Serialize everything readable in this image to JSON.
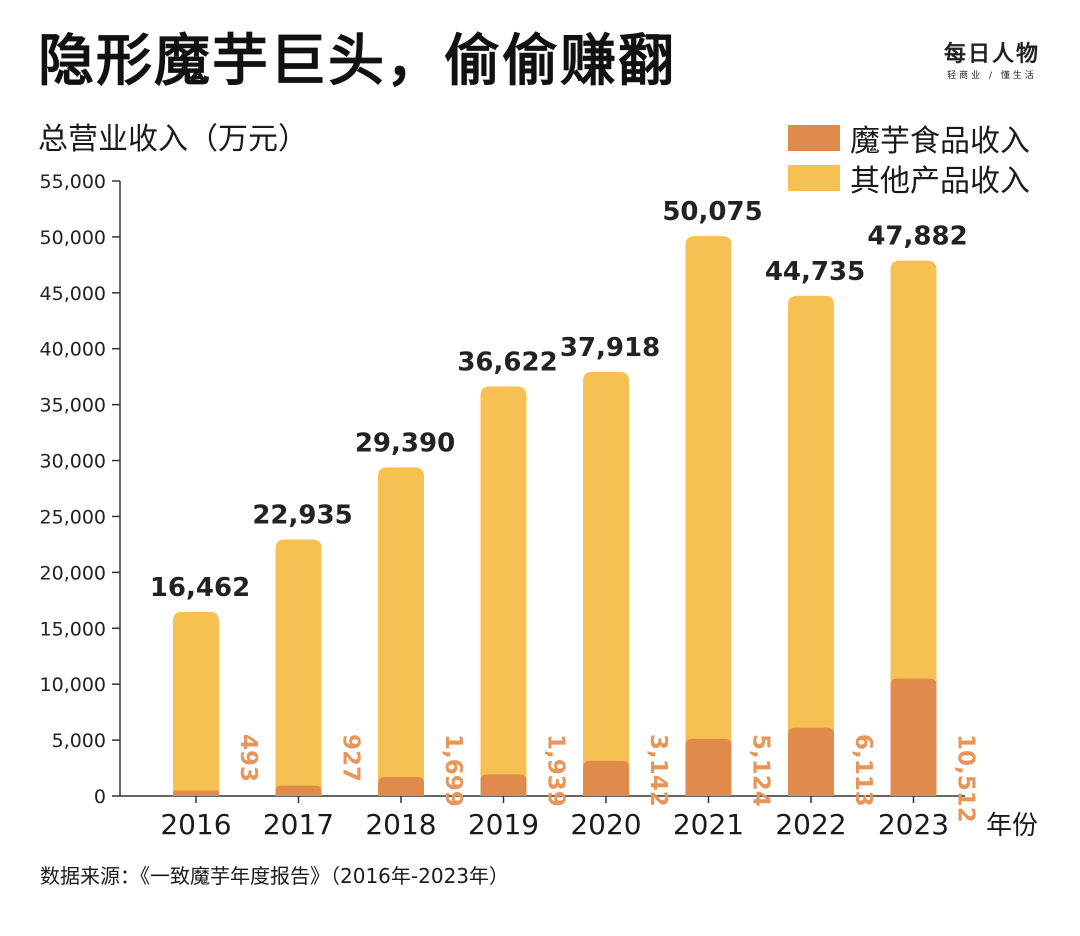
{
  "header": {
    "title": "隐形魔芋巨头，偷偷赚翻",
    "brand_name": "每日人物",
    "brand_tagline": "轻商业 / 懂生活"
  },
  "footer": {
    "source": "数据来源：《一致魔芋年度报告》（2016年-2023年）"
  },
  "colors": {
    "other": "#F6C152",
    "konjac": "#E08A4B",
    "total_label": "#222222",
    "konjac_label": "#E8955A",
    "axis": "#333333"
  },
  "chart_data": {
    "type": "bar",
    "stacked": true,
    "title": "隐形魔芋巨头，偷偷赚翻",
    "ylabel": "总营业收入（万元）",
    "xlabel": "年份",
    "ylim": [
      0,
      55000
    ],
    "yticks": [
      0,
      5000,
      10000,
      15000,
      20000,
      25000,
      30000,
      35000,
      40000,
      45000,
      50000,
      55000
    ],
    "ytick_labels": [
      "0",
      "5,000",
      "10,000",
      "15,000",
      "20,000",
      "25,000",
      "30,000",
      "35,000",
      "40,000",
      "45,000",
      "50,000",
      "55,000"
    ],
    "categories": [
      "2016",
      "2017",
      "2018",
      "2019",
      "2020",
      "2021",
      "2022",
      "2023"
    ],
    "series": [
      {
        "name": "魔芋食品收入",
        "values": [
          493,
          927,
          1699,
          1939,
          3142,
          5124,
          6113,
          10512
        ],
        "labels": [
          "493",
          "927",
          "1,699",
          "1,939",
          "3,142",
          "5,124",
          "6,113",
          "10,512"
        ]
      },
      {
        "name": "其他产品收入",
        "values": [
          15969,
          22008,
          27691,
          34683,
          34776,
          44951,
          38622,
          37370
        ]
      }
    ],
    "totals": [
      16462,
      22935,
      29390,
      36622,
      37918,
      50075,
      44735,
      47882
    ],
    "total_labels": [
      "16,462",
      "22,935",
      "29,390",
      "36,622",
      "37,918",
      "50,075",
      "44,735",
      "47,882"
    ],
    "legend": [
      "魔芋食品收入",
      "其他产品收入"
    ],
    "legend_position": "top-right",
    "grid": false
  }
}
